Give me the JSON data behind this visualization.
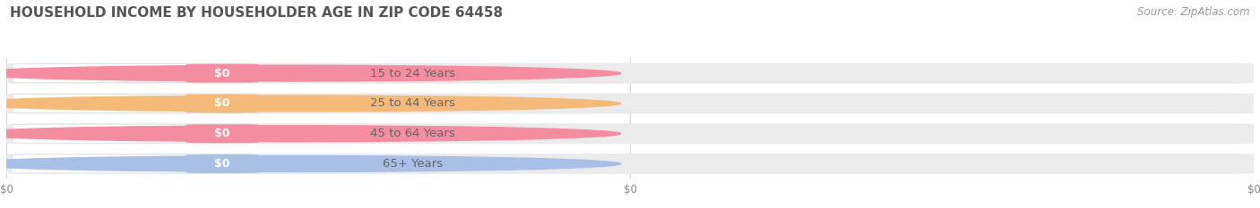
{
  "title": "HOUSEHOLD INCOME BY HOUSEHOLDER AGE IN ZIP CODE 64458",
  "source": "Source: ZipAtlas.com",
  "categories": [
    "15 to 24 Years",
    "25 to 44 Years",
    "45 to 64 Years",
    "65+ Years"
  ],
  "values": [
    0,
    0,
    0,
    0
  ],
  "bar_colors": [
    "#f48da0",
    "#f5b97a",
    "#f48da0",
    "#a8bfe8"
  ],
  "background_color": "#ffffff",
  "track_color": "#ebebeb",
  "pill_bg_color": "#ffffff",
  "text_color": "#666666",
  "value_text_color": "#ffffff",
  "title_color": "#555555",
  "source_color": "#999999",
  "grid_color": "#cccccc",
  "title_fontsize": 11,
  "source_fontsize": 8.5,
  "label_fontsize": 9.5,
  "value_label": "$0",
  "xtick_labels": [
    "$0",
    "$0",
    "$0"
  ],
  "xtick_positions": [
    0.0,
    0.5,
    1.0
  ]
}
